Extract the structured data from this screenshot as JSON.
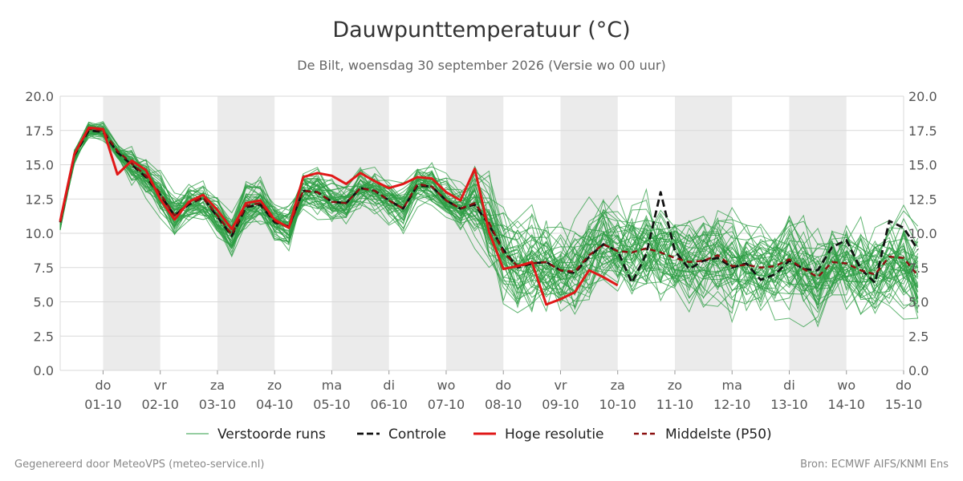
{
  "header": {
    "title": "Dauwpunttemperatuur (°C)",
    "subtitle": "De Bilt, woensdag 30 september 2026 (Versie wo 00 uur)"
  },
  "footer": {
    "left": "Gegenereerd door MeteoVPS (meteo-service.nl)",
    "right": "Bron: ECMWF AIFS/KNMI Ens"
  },
  "colors": {
    "ensemble": "#2e9e44",
    "control": "#111111",
    "hires": "#e01818",
    "median": "#8b1010",
    "weekend_band": "#ebebeb",
    "grid": "#d9d9d9"
  },
  "chart_data": {
    "type": "line",
    "title": "Dauwpunttemperatuur (°C)",
    "ylim": [
      0,
      20
    ],
    "y_ticks": [
      "0.0",
      "2.5",
      "5.0",
      "7.5",
      "10.0",
      "12.5",
      "15.0",
      "17.5",
      "20.0"
    ],
    "x_range_days": [
      -0.75,
      14
    ],
    "x_ticks": [
      {
        "day": 0,
        "weekday": "do",
        "date": "01-10"
      },
      {
        "day": 1,
        "weekday": "vr",
        "date": "02-10"
      },
      {
        "day": 2,
        "weekday": "za",
        "date": "03-10"
      },
      {
        "day": 3,
        "weekday": "zo",
        "date": "04-10"
      },
      {
        "day": 4,
        "weekday": "ma",
        "date": "05-10"
      },
      {
        "day": 5,
        "weekday": "di",
        "date": "06-10"
      },
      {
        "day": 6,
        "weekday": "wo",
        "date": "07-10"
      },
      {
        "day": 7,
        "weekday": "do",
        "date": "08-10"
      },
      {
        "day": 8,
        "weekday": "vr",
        "date": "09-10"
      },
      {
        "day": 9,
        "weekday": "za",
        "date": "10-10"
      },
      {
        "day": 10,
        "weekday": "zo",
        "date": "11-10"
      },
      {
        "day": 11,
        "weekday": "ma",
        "date": "12-10"
      },
      {
        "day": 12,
        "weekday": "di",
        "date": "13-10"
      },
      {
        "day": 13,
        "weekday": "wo",
        "date": "14-10"
      },
      {
        "day": 14,
        "weekday": "do",
        "date": "15-10"
      }
    ],
    "shaded_days": [
      [
        0,
        1
      ],
      [
        2,
        3
      ],
      [
        4,
        5
      ],
      [
        6,
        7
      ],
      [
        8,
        9
      ],
      [
        10,
        11
      ],
      [
        12,
        13
      ]
    ],
    "grid": true,
    "legend_position": "bottom",
    "legend": [
      {
        "key": "ensemble",
        "label": "Verstoorde runs"
      },
      {
        "key": "control",
        "label": "Controle"
      },
      {
        "key": "hires",
        "label": "Hoge resolutie"
      },
      {
        "key": "median",
        "label": "Middelste (P50)"
      }
    ],
    "x_step_days": 0.25,
    "x_start_day": -0.75,
    "series": [
      {
        "name": "Hoge resolutie",
        "key": "hires",
        "values": [
          10.9,
          15.8,
          17.7,
          17.6,
          14.3,
          15.3,
          14.6,
          12.5,
          11.0,
          12.3,
          12.8,
          11.7,
          10.3,
          12.2,
          12.4,
          11.0,
          10.4,
          14.1,
          14.4,
          14.2,
          13.6,
          14.4,
          13.8,
          13.3,
          13.6,
          14.1,
          14.0,
          13.0,
          12.4,
          14.7,
          10.1,
          7.4,
          7.6,
          7.9,
          4.8,
          5.2,
          5.7,
          7.3,
          6.8,
          6.2
        ]
      },
      {
        "name": "Controle",
        "key": "control",
        "values": [
          10.8,
          15.7,
          17.5,
          17.4,
          15.9,
          15.0,
          14.1,
          12.8,
          11.3,
          12.1,
          12.6,
          11.2,
          9.8,
          11.9,
          12.1,
          10.8,
          10.5,
          13.1,
          13.0,
          12.3,
          12.2,
          13.3,
          13.1,
          12.4,
          11.8,
          13.5,
          13.4,
          12.4,
          11.8,
          12.1,
          10.6,
          8.8,
          7.5,
          7.8,
          7.9,
          7.3,
          7.1,
          8.3,
          9.2,
          8.7,
          6.4,
          8.5,
          13.0,
          8.7,
          7.4,
          8.0,
          8.2,
          7.5,
          7.8,
          6.6,
          7.0,
          8.0,
          7.4,
          7.3,
          9.0,
          9.5,
          7.4,
          6.4,
          10.9,
          10.4,
          8.8
        ]
      },
      {
        "name": "Middelste (P50)",
        "key": "median",
        "values": [
          10.8,
          15.8,
          17.6,
          17.5,
          16.0,
          15.1,
          14.2,
          12.9,
          11.3,
          12.2,
          12.6,
          11.3,
          9.9,
          12.0,
          12.2,
          10.9,
          10.4,
          13.1,
          13.0,
          12.3,
          12.2,
          13.3,
          13.1,
          12.4,
          11.8,
          13.6,
          13.4,
          12.4,
          11.8,
          12.2,
          10.8,
          8.6,
          7.6,
          7.8,
          7.9,
          7.3,
          7.2,
          8.4,
          9.2,
          8.7,
          8.6,
          8.9,
          8.6,
          8.2,
          7.9,
          8.0,
          8.4,
          7.6,
          7.7,
          7.5,
          7.6,
          8.1,
          7.4,
          6.8,
          7.9,
          7.8,
          7.3,
          7.0,
          8.3,
          8.2,
          6.9
        ]
      }
    ]
  }
}
